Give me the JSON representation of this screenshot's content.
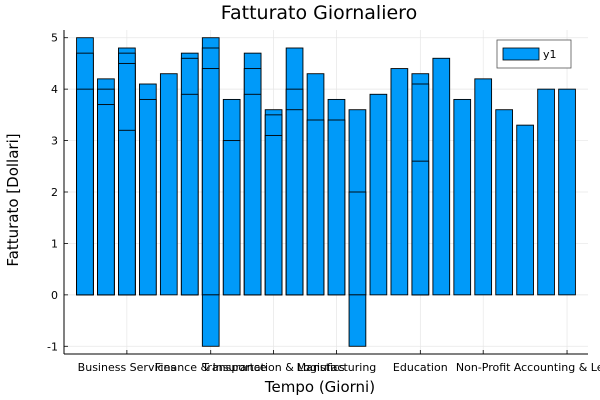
{
  "chart_data": {
    "type": "bar",
    "title": "Fatturato Giornaliero",
    "xlabel": "Tempo (Giorni)",
    "ylabel": "Fatturato [Dollari]",
    "ylim": [
      -1.15,
      5.15
    ],
    "yticks": [
      -1,
      0,
      1,
      2,
      3,
      4,
      5
    ],
    "grid": true,
    "legend_position": "top-right",
    "bar_color": "#009af9",
    "tick_categories": [
      {
        "pos": 3,
        "label": "Business Services"
      },
      {
        "pos": 7,
        "label": "Finance & Insurance"
      },
      {
        "pos": 10,
        "label": "Transportation & Logistics"
      },
      {
        "pos": 13,
        "label": "Manufacturing"
      },
      {
        "pos": 17,
        "label": "Education"
      },
      {
        "pos": 20,
        "label": "Non-Profit"
      },
      {
        "pos": 24,
        "label": "Accounting & Legal"
      }
    ],
    "series": [
      {
        "name": "y1",
        "positions": [
          1,
          1,
          1,
          2,
          2,
          2,
          3,
          3,
          3,
          3,
          4,
          4,
          5,
          6,
          6,
          6,
          7,
          7,
          7,
          7,
          8,
          8,
          9,
          9,
          9,
          10,
          10,
          10,
          11,
          11,
          11,
          12,
          12,
          13,
          13,
          14,
          14,
          14,
          15,
          16,
          17,
          17,
          17,
          18,
          19,
          20,
          21,
          22,
          23,
          24
        ],
        "values": [
          5.0,
          4.7,
          4.0,
          4.2,
          4.0,
          3.7,
          4.8,
          4.7,
          4.5,
          3.2,
          4.1,
          3.8,
          4.3,
          4.7,
          4.6,
          3.9,
          5.0,
          4.8,
          4.4,
          -1.0,
          3.8,
          3.0,
          4.7,
          4.4,
          3.9,
          3.6,
          3.5,
          3.1,
          4.8,
          4.0,
          3.6,
          4.3,
          3.4,
          3.8,
          3.4,
          3.6,
          2.0,
          -1.0,
          3.9,
          4.4,
          4.3,
          4.1,
          2.6,
          4.6,
          3.8,
          4.2,
          3.6,
          3.3,
          4.0,
          4.0
        ]
      }
    ]
  }
}
